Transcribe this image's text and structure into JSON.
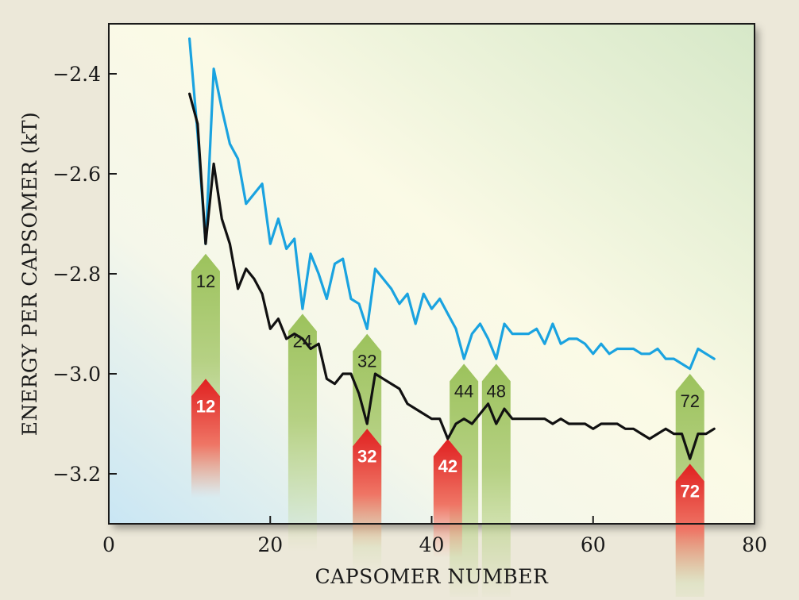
{
  "chart_data": {
    "type": "line",
    "xlabel": "CAPSOMER NUMBER",
    "ylabel": "ENERGY PER CAPSOMER (kT)",
    "xlim": [
      0,
      80
    ],
    "ylim": [
      -3.3,
      -2.3
    ],
    "x_ticks": [
      0,
      20,
      40,
      60,
      80
    ],
    "x_tick_labels": [
      "0",
      "20",
      "40",
      "60",
      "80"
    ],
    "y_ticks": [
      -2.4,
      -2.6,
      -2.8,
      -3.0,
      -3.2
    ],
    "y_tick_labels": [
      "−2.4",
      "−2.6",
      "−2.8",
      "−3.0",
      "−3.2"
    ],
    "grid": false,
    "legend": "none",
    "series": [
      {
        "color": "#1aa3e0",
        "points": [
          [
            10,
            -2.33
          ],
          [
            11,
            -2.52
          ],
          [
            12,
            -2.74
          ],
          [
            13,
            -2.39
          ],
          [
            14,
            -2.47
          ],
          [
            15,
            -2.54
          ],
          [
            16,
            -2.57
          ],
          [
            17,
            -2.66
          ],
          [
            18,
            -2.64
          ],
          [
            19,
            -2.62
          ],
          [
            20,
            -2.74
          ],
          [
            21,
            -2.69
          ],
          [
            22,
            -2.75
          ],
          [
            23,
            -2.73
          ],
          [
            24,
            -2.87
          ],
          [
            25,
            -2.76
          ],
          [
            26,
            -2.8
          ],
          [
            27,
            -2.85
          ],
          [
            28,
            -2.78
          ],
          [
            29,
            -2.77
          ],
          [
            30,
            -2.85
          ],
          [
            31,
            -2.86
          ],
          [
            32,
            -2.91
          ],
          [
            33,
            -2.79
          ],
          [
            34,
            -2.81
          ],
          [
            35,
            -2.83
          ],
          [
            36,
            -2.86
          ],
          [
            37,
            -2.84
          ],
          [
            38,
            -2.9
          ],
          [
            39,
            -2.84
          ],
          [
            40,
            -2.87
          ],
          [
            41,
            -2.85
          ],
          [
            42,
            -2.88
          ],
          [
            43,
            -2.91
          ],
          [
            44,
            -2.97
          ],
          [
            45,
            -2.92
          ],
          [
            46,
            -2.9
          ],
          [
            47,
            -2.93
          ],
          [
            48,
            -2.97
          ],
          [
            49,
            -2.9
          ],
          [
            50,
            -2.92
          ],
          [
            51,
            -2.92
          ],
          [
            52,
            -2.92
          ],
          [
            53,
            -2.91
          ],
          [
            54,
            -2.94
          ],
          [
            55,
            -2.9
          ],
          [
            56,
            -2.94
          ],
          [
            57,
            -2.93
          ],
          [
            58,
            -2.93
          ],
          [
            59,
            -2.94
          ],
          [
            60,
            -2.96
          ],
          [
            61,
            -2.94
          ],
          [
            62,
            -2.96
          ],
          [
            63,
            -2.95
          ],
          [
            64,
            -2.95
          ],
          [
            65,
            -2.95
          ],
          [
            66,
            -2.96
          ],
          [
            67,
            -2.96
          ],
          [
            68,
            -2.95
          ],
          [
            69,
            -2.97
          ],
          [
            70,
            -2.97
          ],
          [
            71,
            -2.98
          ],
          [
            72,
            -2.99
          ],
          [
            73,
            -2.95
          ],
          [
            74,
            -2.96
          ],
          [
            75,
            -2.97
          ]
        ]
      },
      {
        "color": "#111111",
        "points": [
          [
            10,
            -2.44
          ],
          [
            11,
            -2.5
          ],
          [
            12,
            -2.74
          ],
          [
            13,
            -2.58
          ],
          [
            14,
            -2.69
          ],
          [
            15,
            -2.74
          ],
          [
            16,
            -2.83
          ],
          [
            17,
            -2.79
          ],
          [
            18,
            -2.81
          ],
          [
            19,
            -2.84
          ],
          [
            20,
            -2.91
          ],
          [
            21,
            -2.89
          ],
          [
            22,
            -2.93
          ],
          [
            23,
            -2.92
          ],
          [
            24,
            -2.93
          ],
          [
            25,
            -2.95
          ],
          [
            26,
            -2.94
          ],
          [
            27,
            -3.01
          ],
          [
            28,
            -3.02
          ],
          [
            29,
            -3.0
          ],
          [
            30,
            -3.0
          ],
          [
            31,
            -3.04
          ],
          [
            32,
            -3.1
          ],
          [
            33,
            -3.0
          ],
          [
            34,
            -3.01
          ],
          [
            35,
            -3.02
          ],
          [
            36,
            -3.03
          ],
          [
            37,
            -3.06
          ],
          [
            38,
            -3.07
          ],
          [
            39,
            -3.08
          ],
          [
            40,
            -3.09
          ],
          [
            41,
            -3.09
          ],
          [
            42,
            -3.13
          ],
          [
            43,
            -3.1
          ],
          [
            44,
            -3.09
          ],
          [
            45,
            -3.1
          ],
          [
            46,
            -3.08
          ],
          [
            47,
            -3.06
          ],
          [
            48,
            -3.1
          ],
          [
            49,
            -3.07
          ],
          [
            50,
            -3.09
          ],
          [
            51,
            -3.09
          ],
          [
            52,
            -3.09
          ],
          [
            53,
            -3.09
          ],
          [
            54,
            -3.09
          ],
          [
            55,
            -3.1
          ],
          [
            56,
            -3.09
          ],
          [
            57,
            -3.1
          ],
          [
            58,
            -3.1
          ],
          [
            59,
            -3.1
          ],
          [
            60,
            -3.11
          ],
          [
            61,
            -3.1
          ],
          [
            62,
            -3.1
          ],
          [
            63,
            -3.1
          ],
          [
            64,
            -3.11
          ],
          [
            65,
            -3.11
          ],
          [
            66,
            -3.12
          ],
          [
            67,
            -3.13
          ],
          [
            68,
            -3.12
          ],
          [
            69,
            -3.11
          ],
          [
            70,
            -3.12
          ],
          [
            71,
            -3.12
          ],
          [
            72,
            -3.17
          ],
          [
            73,
            -3.12
          ],
          [
            74,
            -3.12
          ],
          [
            75,
            -3.11
          ]
        ]
      }
    ],
    "annotations": [
      {
        "label": "12",
        "x": 12,
        "y": -2.76,
        "color": "green"
      },
      {
        "label": "24",
        "x": 24,
        "y": -2.88,
        "color": "green"
      },
      {
        "label": "32",
        "x": 32,
        "y": -2.92,
        "color": "green"
      },
      {
        "label": "44",
        "x": 44,
        "y": -2.98,
        "color": "green"
      },
      {
        "label": "48",
        "x": 48,
        "y": -2.98,
        "color": "green"
      },
      {
        "label": "72",
        "x": 72,
        "y": -3.0,
        "color": "green"
      },
      {
        "label": "12",
        "x": 12,
        "y": -3.01,
        "color": "red"
      },
      {
        "label": "32",
        "x": 32,
        "y": -3.11,
        "color": "red"
      },
      {
        "label": "42",
        "x": 42,
        "y": -3.13,
        "color": "red"
      },
      {
        "label": "72",
        "x": 72,
        "y": -3.18,
        "color": "red"
      }
    ]
  }
}
